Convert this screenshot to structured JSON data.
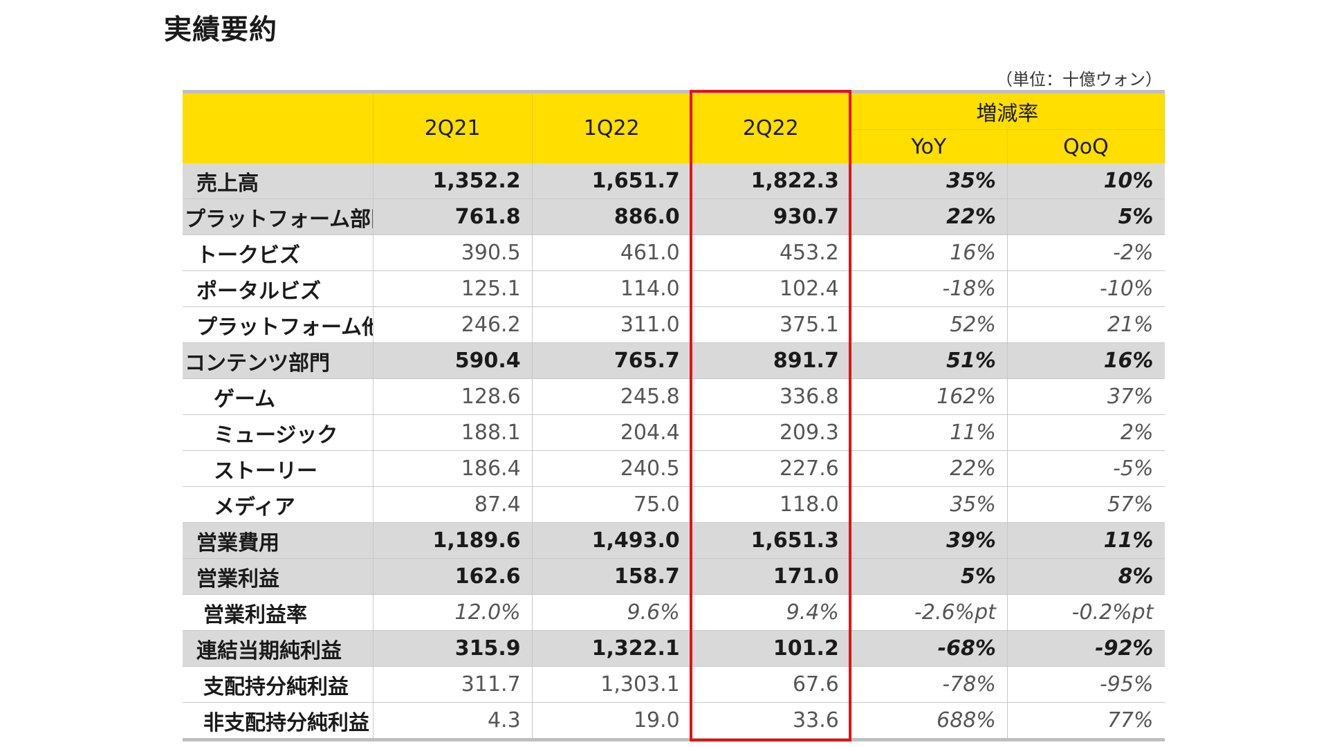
{
  "page": {
    "title": "実績要約",
    "unit_note": "（単位：十億ウォン）"
  },
  "table": {
    "headers": {
      "periods": [
        "2Q21",
        "1Q22",
        "2Q22"
      ],
      "change_group": "増減率",
      "change_cols": [
        "YoY",
        "QoQ"
      ]
    },
    "highlighted_column": "2Q22",
    "rows": [
      {
        "label": "売上高",
        "values": [
          "1,352.2",
          "1,651.7",
          "1,822.3"
        ],
        "yoy": "35%",
        "qoq": "10%"
      },
      {
        "label": "プラットフォーム部門",
        "values": [
          "761.8",
          "886.0",
          "930.7"
        ],
        "yoy": "22%",
        "qoq": "5%"
      },
      {
        "label": "トークビズ",
        "values": [
          "390.5",
          "461.0",
          "453.2"
        ],
        "yoy": "16%",
        "qoq": "-2%"
      },
      {
        "label": "ポータルビズ",
        "values": [
          "125.1",
          "114.0",
          "102.4"
        ],
        "yoy": "-18%",
        "qoq": "-10%"
      },
      {
        "label": "プラットフォーム他",
        "values": [
          "246.2",
          "311.0",
          "375.1"
        ],
        "yoy": "52%",
        "qoq": "21%"
      },
      {
        "label": "コンテンツ部門",
        "values": [
          "590.4",
          "765.7",
          "891.7"
        ],
        "yoy": "51%",
        "qoq": "16%"
      },
      {
        "label": "ゲーム",
        "values": [
          "128.6",
          "245.8",
          "336.8"
        ],
        "yoy": "162%",
        "qoq": "37%"
      },
      {
        "label": "ミュージック",
        "values": [
          "188.1",
          "204.4",
          "209.3"
        ],
        "yoy": "11%",
        "qoq": "2%"
      },
      {
        "label": "ストーリー",
        "values": [
          "186.4",
          "240.5",
          "227.6"
        ],
        "yoy": "22%",
        "qoq": "-5%"
      },
      {
        "label": "メディア",
        "values": [
          "87.4",
          "75.0",
          "118.0"
        ],
        "yoy": "35%",
        "qoq": "57%"
      },
      {
        "label": "営業費用",
        "values": [
          "1,189.6",
          "1,493.0",
          "1,651.3"
        ],
        "yoy": "39%",
        "qoq": "11%"
      },
      {
        "label": "営業利益",
        "values": [
          "162.6",
          "158.7",
          "171.0"
        ],
        "yoy": "5%",
        "qoq": "8%"
      },
      {
        "label": "営業利益率",
        "values": [
          "12.0%",
          "9.6%",
          "9.4%"
        ],
        "yoy": "-2.6%pt",
        "qoq": "-0.2%pt"
      },
      {
        "label": "連結当期純利益",
        "values": [
          "315.9",
          "1,322.1",
          "101.2"
        ],
        "yoy": "-68%",
        "qoq": "-92%"
      },
      {
        "label": "支配持分純利益",
        "values": [
          "311.7",
          "1,303.1",
          "67.6"
        ],
        "yoy": "-78%",
        "qoq": "-95%"
      },
      {
        "label": "非支配持分純利益",
        "values": [
          "4.3",
          "19.0",
          "33.6"
        ],
        "yoy": "688%",
        "qoq": "77%"
      }
    ]
  },
  "colors": {
    "header_bg": "#ffde00",
    "shaded_row_bg": "#d9d9d9",
    "highlight_border": "#e81010"
  }
}
